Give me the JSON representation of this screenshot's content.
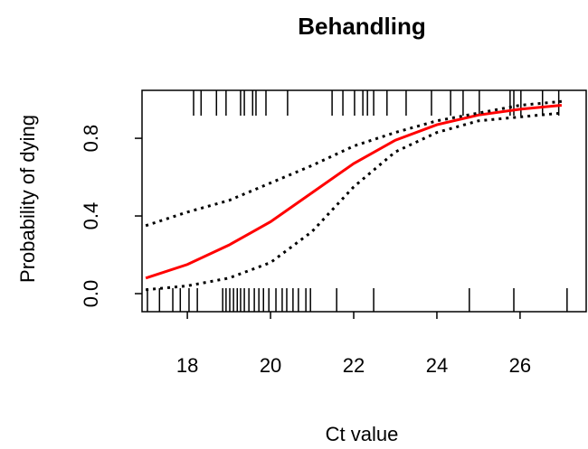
{
  "chart_data": {
    "type": "line",
    "title": "Behandling",
    "x_label": "Ct value",
    "y_label": "Probability of dying",
    "xlim": [
      16.91,
      27.59
    ],
    "ylim": [
      -0.093,
      1.047
    ],
    "xticks": [
      18,
      20,
      22,
      24,
      26
    ],
    "yticks": [
      {
        "value": 0,
        "label": "0.0"
      },
      {
        "value": 0.4,
        "label": "0.4"
      },
      {
        "value": 0.8,
        "label": "0.8"
      }
    ],
    "x": [
      17,
      18,
      19,
      20,
      21,
      22,
      23,
      24,
      25,
      26,
      27
    ],
    "series": [
      {
        "color": "#ff0000",
        "style": "solid",
        "values": [
          0.08,
          0.15,
          0.25,
          0.37,
          0.52,
          0.67,
          0.79,
          0.87,
          0.92,
          0.95,
          0.97
        ]
      },
      {
        "color": "#000000",
        "style": "dotted",
        "values": [
          0.35,
          0.42,
          0.48,
          0.57,
          0.66,
          0.76,
          0.83,
          0.89,
          0.93,
          0.97,
          0.99
        ]
      },
      {
        "color": "#000000",
        "style": "dotted",
        "values": [
          0.02,
          0.04,
          0.08,
          0.16,
          0.32,
          0.55,
          0.73,
          0.83,
          0.89,
          0.91,
          0.93
        ]
      }
    ],
    "rug_top": [
      18.15,
      18.33,
      18.7,
      18.93,
      19.28,
      19.37,
      19.57,
      19.65,
      19.89,
      20.41,
      21.48,
      21.74,
      22.02,
      22.22,
      22.33,
      22.48,
      22.8,
      23.26,
      23.87,
      24.33,
      24.63,
      25.02,
      25.76,
      25.85,
      26.02,
      26.54,
      26.93
    ],
    "rug_bottom": [
      17.04,
      17.33,
      17.65,
      17.83,
      18.04,
      18.24,
      18.85,
      18.93,
      19.02,
      19.11,
      19.2,
      19.28,
      19.37,
      19.48,
      19.61,
      19.72,
      19.83,
      19.96,
      20.13,
      20.28,
      20.39,
      20.54,
      20.67,
      20.85,
      20.96,
      21.59,
      22.48,
      24.78,
      25.85,
      27.13
    ]
  }
}
